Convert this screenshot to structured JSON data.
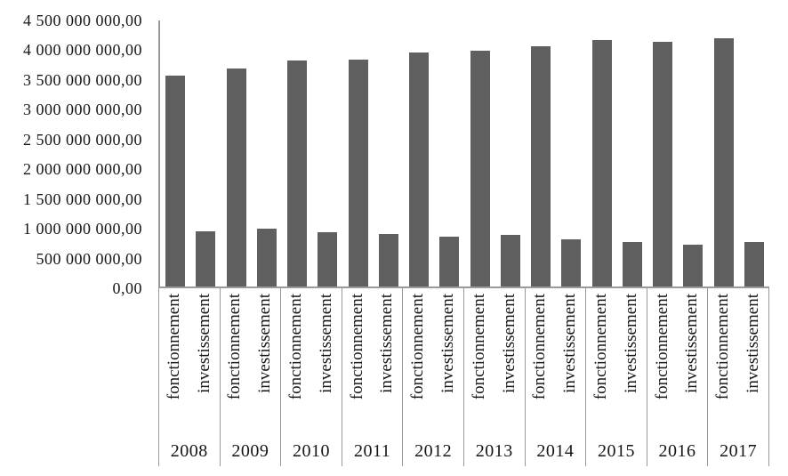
{
  "chart_data": {
    "type": "bar",
    "title": "",
    "xlabel": "",
    "ylabel": "",
    "categories": [
      "2008",
      "2009",
      "2010",
      "2011",
      "2012",
      "2013",
      "2014",
      "2015",
      "2016",
      "2017"
    ],
    "series": [
      {
        "name": "fonctionnement",
        "values": [
          3560000000,
          3685000000,
          3820000000,
          3845000000,
          3955000000,
          3990000000,
          4070000000,
          4170000000,
          4135000000,
          4200000000
        ]
      },
      {
        "name": "investissement",
        "values": [
          940000000,
          985000000,
          925000000,
          895000000,
          850000000,
          880000000,
          805000000,
          750000000,
          710000000,
          760000000
        ]
      }
    ],
    "ylim": [
      0,
      4500000000
    ],
    "y_tick_labels": [
      "4 500 000 000,00",
      "4 000 000 000,00",
      "3 500 000 000,00",
      "3 000 000 000,00",
      "2 500 000 000,00",
      "2 000 000 000,00",
      "1 500 000 000,00",
      "1 000 000 000,00",
      "500 000 000,00",
      "0,00"
    ],
    "grid": false,
    "legend_position": "none",
    "bar_color": "#5f5f5f",
    "axis_color": "#9a9a9a",
    "category_label_rotation": -90
  }
}
